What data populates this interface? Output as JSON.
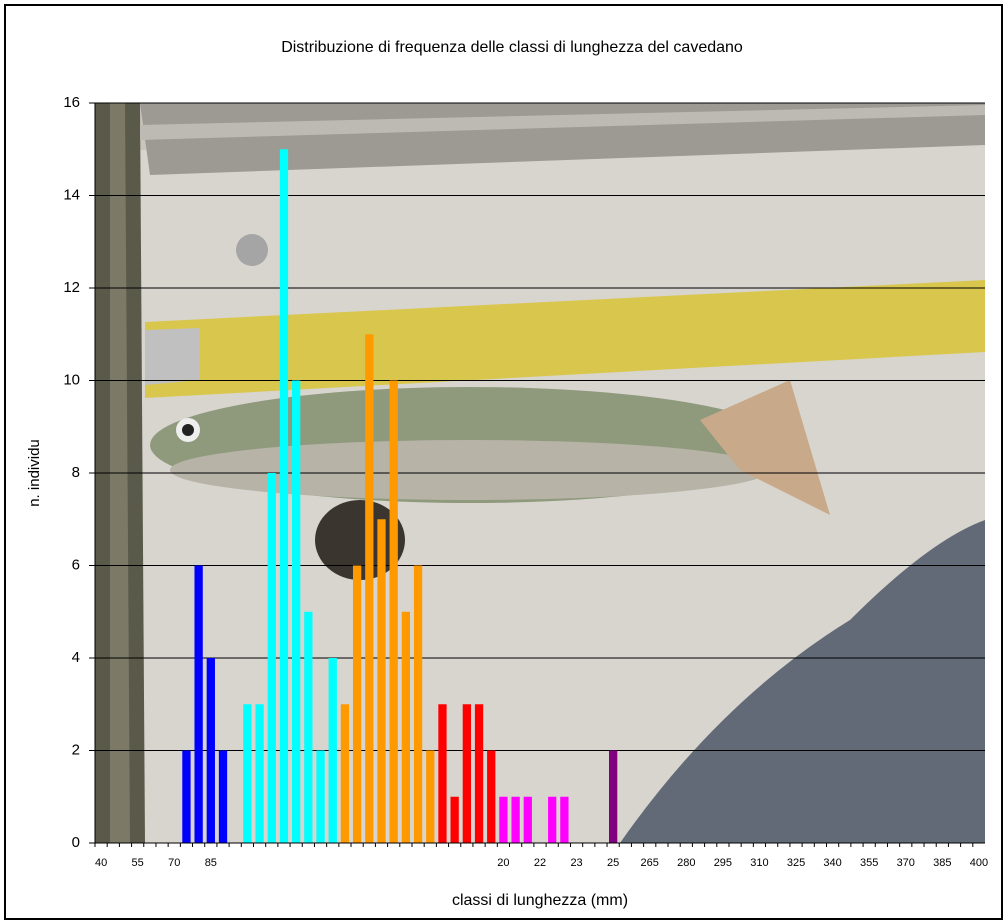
{
  "chart_data": {
    "type": "bar",
    "title": "Distribuzione di frequenza delle classi di lunghezza del cavedano",
    "y_label": "n. individu",
    "x_label": "classi di lunghezza (mm)",
    "categories": [
      "40",
      null,
      null,
      "55",
      null,
      null,
      "70",
      null,
      null,
      "85",
      null,
      null,
      null,
      null,
      null,
      null,
      null,
      null,
      null,
      null,
      null,
      null,
      null,
      null,
      null,
      null,
      null,
      null,
      null,
      null,
      null,
      null,
      null,
      "20",
      null,
      null,
      "22",
      null,
      null,
      "23",
      null,
      null,
      "25",
      null,
      null,
      "265",
      null,
      null,
      "280",
      null,
      null,
      "295",
      null,
      null,
      "310",
      null,
      null,
      "325",
      null,
      null,
      "340",
      null,
      null,
      "355",
      null,
      null,
      "370",
      null,
      null,
      "385",
      null,
      null,
      "400"
    ],
    "values": [
      null,
      null,
      null,
      null,
      null,
      null,
      null,
      2,
      6,
      4,
      2,
      null,
      3,
      3,
      8,
      15,
      10,
      5,
      2,
      4,
      3,
      6,
      11,
      7,
      10,
      5,
      6,
      2,
      3,
      1,
      3,
      3,
      2,
      1,
      1,
      1,
      null,
      1,
      1,
      null,
      null,
      null,
      2,
      null,
      null,
      null,
      null,
      null,
      null,
      null,
      null,
      null,
      null,
      null,
      null,
      null,
      null,
      null,
      null,
      null,
      null,
      null,
      null,
      null,
      null,
      null,
      null,
      null,
      null,
      null,
      null,
      null,
      null
    ],
    "colors": [
      null,
      null,
      null,
      null,
      null,
      null,
      null,
      "#0000ff",
      "#0000ff",
      "#0000ff",
      "#0000ff",
      null,
      "#00ffff",
      "#00ffff",
      "#00ffff",
      "#00ffff",
      "#00ffff",
      "#00ffff",
      "#00ffff",
      "#00ffff",
      "#ff9900",
      "#ff9900",
      "#ff9900",
      "#ff9900",
      "#ff9900",
      "#ff9900",
      "#ff9900",
      "#ff9900",
      "#ff0000",
      "#ff0000",
      "#ff0000",
      "#ff0000",
      "#ff0000",
      "#ff00ff",
      "#ff00ff",
      "#ff00ff",
      null,
      "#ff00ff",
      "#ff00ff",
      null,
      null,
      null,
      "#800080",
      null,
      null,
      null,
      null,
      null,
      null,
      null,
      null,
      null,
      null,
      null,
      null,
      null,
      null,
      null,
      null,
      null,
      null,
      null,
      null,
      null,
      null,
      null,
      null,
      null,
      null,
      null,
      null,
      null,
      null
    ],
    "ylim": [
      0,
      16
    ],
    "yticks": [
      0,
      2,
      4,
      6,
      8,
      10,
      12,
      14,
      16
    ],
    "grid": true
  }
}
